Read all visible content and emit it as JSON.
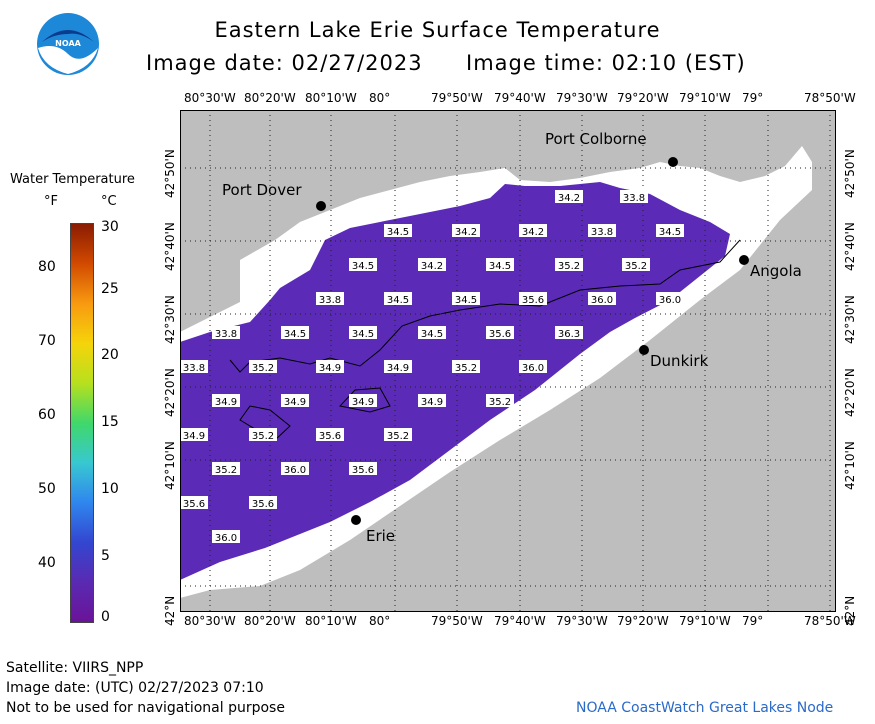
{
  "header": {
    "title": "Eastern Lake Erie Surface Temperature",
    "image_date": "Image date: 02/27/2023",
    "image_time": "Image time: 02:10 (EST)"
  },
  "logo": {
    "text": "NOAA",
    "colors": {
      "outer": "#1E88D8",
      "inner": "#0B3B8C"
    }
  },
  "legend": {
    "title": "Water Temperature",
    "unit_f": "°F",
    "unit_c": "°C",
    "f_ticks": [
      "80",
      "70",
      "60",
      "50",
      "40"
    ],
    "c_ticks": [
      "30",
      "25",
      "20",
      "15",
      "10",
      "5",
      "0"
    ],
    "colors": [
      "#8a1c02",
      "#d24a00",
      "#f89a10",
      "#f5d40a",
      "#b7e01e",
      "#3fd86a",
      "#38c8d0",
      "#2f86ee",
      "#3346d0",
      "#5a2ab2",
      "#6a1398"
    ]
  },
  "axes": {
    "lon_labels": [
      "80°30'W",
      "80°20'W",
      "80°10'W",
      "80°",
      "79°50'W",
      "79°40'W",
      "79°30'W",
      "79°20'W",
      "79°10'W",
      "79°",
      "78°50'W"
    ],
    "lat_labels": [
      "42°50'N",
      "42°40'N",
      "42°30'N",
      "42°20'N",
      "42°10'N",
      "42°N"
    ]
  },
  "places": [
    {
      "name": "Port Colborne"
    },
    {
      "name": "Port Dover"
    },
    {
      "name": "Angola"
    },
    {
      "name": "Dunkirk"
    },
    {
      "name": "Erie"
    }
  ],
  "temperature_labels": [
    "34.2",
    "33.8",
    "34.5",
    "34.2",
    "34.2",
    "33.8",
    "34.5",
    "34.5",
    "34.2",
    "34.5",
    "35.2",
    "35.2",
    "33.8",
    "34.5",
    "34.5",
    "35.6",
    "36.0",
    "36.0",
    "33.8",
    "34.5",
    "34.5",
    "34.5",
    "35.6",
    "36.3",
    "33.8",
    "35.2",
    "34.9",
    "34.9",
    "35.2",
    "36.0",
    "34.9",
    "34.9",
    "34.9",
    "34.9",
    "35.2",
    "34.9",
    "35.2",
    "35.6",
    "35.2",
    "35.2",
    "36.0",
    "35.6",
    "35.6",
    "35.6",
    "36.0"
  ],
  "colors": {
    "land": "#bebebe",
    "ice": "#ffffff",
    "water": "#5b2bb8"
  },
  "footer": {
    "satellite": "Satellite: VIIRS_NPP",
    "utc_date": "Image date: (UTC) 02/27/2023  07:10",
    "disclaimer": "Not to be used for navigational purpose",
    "source": "NOAA CoastWatch Great Lakes Node"
  }
}
